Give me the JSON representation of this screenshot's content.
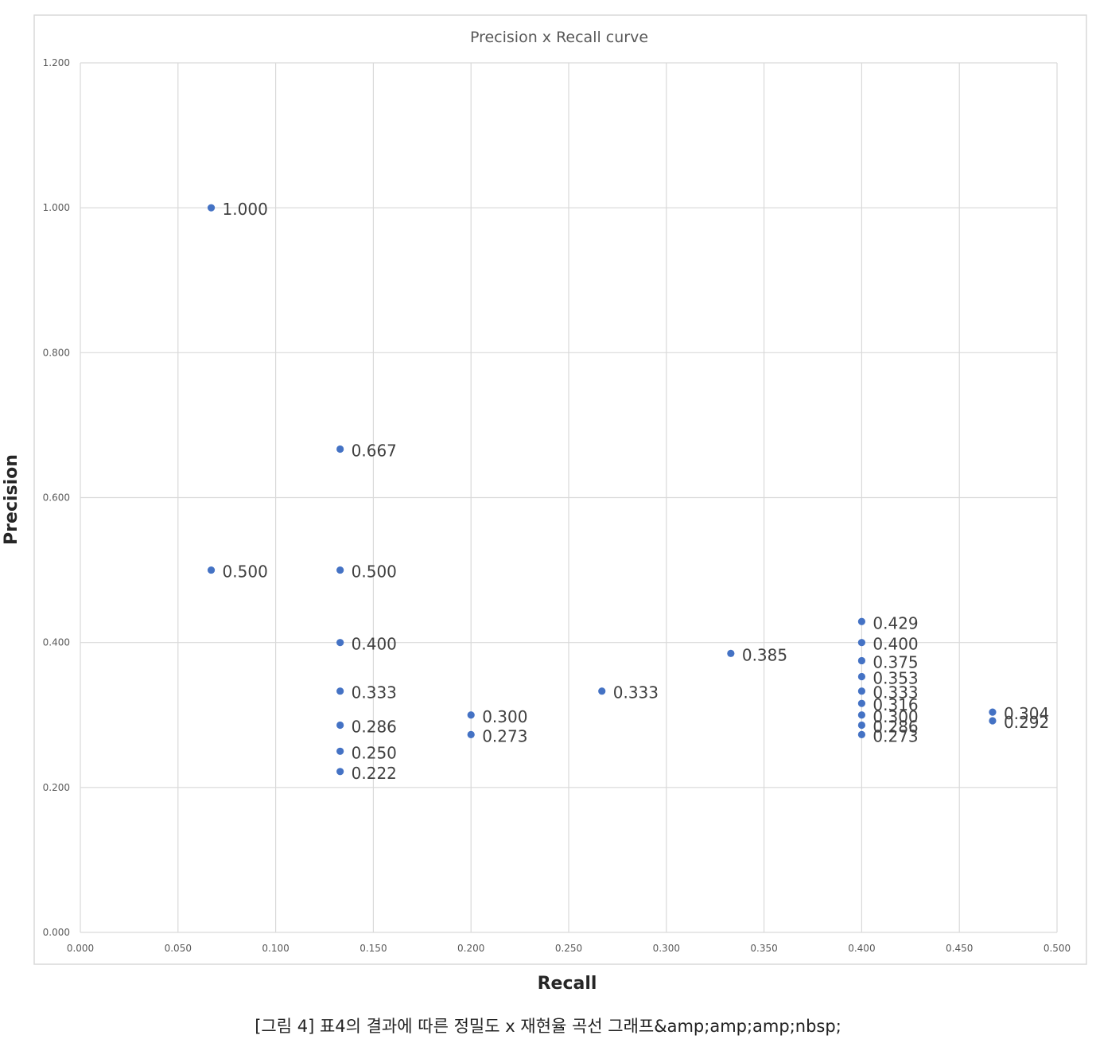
{
  "chart_data": {
    "type": "scatter",
    "title": "Precision x Recall curve",
    "xlabel": "Recall",
    "ylabel": "Precision",
    "xlim": [
      0,
      0.5
    ],
    "ylim": [
      0,
      1.2
    ],
    "x_ticks": [
      "0.000",
      "0.050",
      "0.100",
      "0.150",
      "0.200",
      "0.250",
      "0.300",
      "0.350",
      "0.400",
      "0.450",
      "0.500"
    ],
    "y_ticks": [
      "0.000",
      "0.200",
      "0.400",
      "0.600",
      "0.800",
      "1.000",
      "1.200"
    ],
    "grid": true,
    "legend": "none",
    "marker_color": "#4472c4",
    "points": [
      {
        "x": 0.067,
        "y": 1.0,
        "label": "1.000"
      },
      {
        "x": 0.067,
        "y": 0.5,
        "label": "0.500"
      },
      {
        "x": 0.133,
        "y": 0.667,
        "label": "0.667"
      },
      {
        "x": 0.133,
        "y": 0.5,
        "label": "0.500"
      },
      {
        "x": 0.133,
        "y": 0.4,
        "label": "0.400"
      },
      {
        "x": 0.133,
        "y": 0.333,
        "label": "0.333"
      },
      {
        "x": 0.133,
        "y": 0.286,
        "label": "0.286"
      },
      {
        "x": 0.133,
        "y": 0.25,
        "label": "0.250"
      },
      {
        "x": 0.133,
        "y": 0.222,
        "label": "0.222"
      },
      {
        "x": 0.2,
        "y": 0.3,
        "label": "0.300"
      },
      {
        "x": 0.2,
        "y": 0.273,
        "label": "0.273"
      },
      {
        "x": 0.267,
        "y": 0.333,
        "label": "0.333"
      },
      {
        "x": 0.333,
        "y": 0.385,
        "label": "0.385"
      },
      {
        "x": 0.4,
        "y": 0.429,
        "label": "0.429"
      },
      {
        "x": 0.4,
        "y": 0.4,
        "label": "0.400"
      },
      {
        "x": 0.4,
        "y": 0.375,
        "label": "0.375"
      },
      {
        "x": 0.4,
        "y": 0.353,
        "label": "0.353"
      },
      {
        "x": 0.4,
        "y": 0.333,
        "label": "0.333"
      },
      {
        "x": 0.4,
        "y": 0.316,
        "label": "0.316"
      },
      {
        "x": 0.4,
        "y": 0.3,
        "label": "0.300"
      },
      {
        "x": 0.4,
        "y": 0.286,
        "label": "0.286"
      },
      {
        "x": 0.4,
        "y": 0.273,
        "label": "0.273"
      },
      {
        "x": 0.467,
        "y": 0.304,
        "label": "0.304"
      },
      {
        "x": 0.467,
        "y": 0.292,
        "label": "0.292"
      }
    ]
  },
  "caption": "[그림 4] 표4의 결과에 따른 정밀도 x 재현율 곡선 그래프&amp;amp;amp;nbsp;"
}
